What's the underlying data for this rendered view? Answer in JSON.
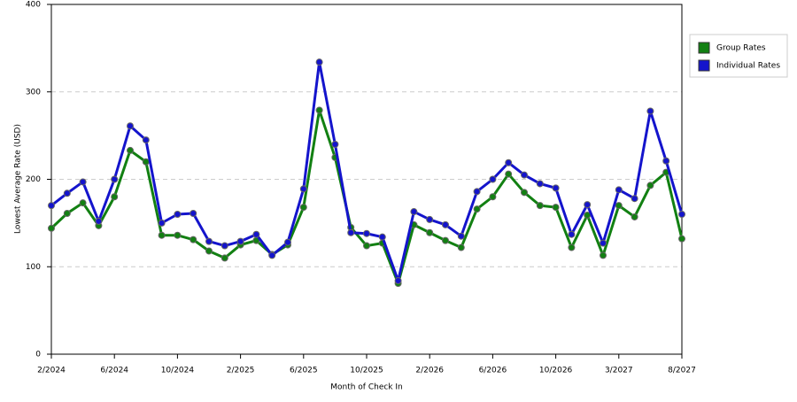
{
  "chart_data": {
    "type": "line",
    "y_label": "Lowest Average Rate (USD)",
    "x_label": "Month of Check In",
    "categories": [
      "2/2024",
      null,
      null,
      null,
      "6/2024",
      null,
      null,
      null,
      "10/2024",
      null,
      null,
      null,
      "2/2025",
      null,
      null,
      null,
      "6/2025",
      null,
      null,
      null,
      "10/2025",
      null,
      null,
      null,
      "2/2026",
      null,
      null,
      null,
      "6/2026",
      null,
      null,
      null,
      "10/2026",
      null,
      null,
      null,
      "3/2027",
      null,
      null,
      null,
      "8/2027"
    ],
    "series": [
      {
        "name": "Group Rates",
        "color": "#128012",
        "values": [
          144,
          161,
          173,
          147,
          180,
          233,
          220,
          136,
          136,
          131,
          118,
          110,
          125,
          130,
          114,
          125,
          168,
          279,
          225,
          145,
          124,
          127,
          81,
          148,
          139,
          130,
          122,
          166,
          180,
          206,
          185,
          170,
          168,
          122,
          159,
          113,
          170,
          157,
          193,
          208,
          132
        ]
      },
      {
        "name": "Individual Rates",
        "color": "#1414cc",
        "values": [
          170,
          184,
          197,
          152,
          200,
          261,
          245,
          150,
          160,
          161,
          129,
          124,
          129,
          137,
          113,
          128,
          189,
          334,
          240,
          139,
          138,
          134,
          84,
          163,
          154,
          148,
          135,
          186,
          200,
          219,
          205,
          195,
          190,
          137,
          171,
          127,
          188,
          178,
          278,
          221,
          160
        ]
      }
    ],
    "ylim": [
      0,
      400
    ],
    "yticks": [
      0,
      100,
      200,
      300,
      400
    ],
    "grid": true,
    "legend": "right"
  }
}
